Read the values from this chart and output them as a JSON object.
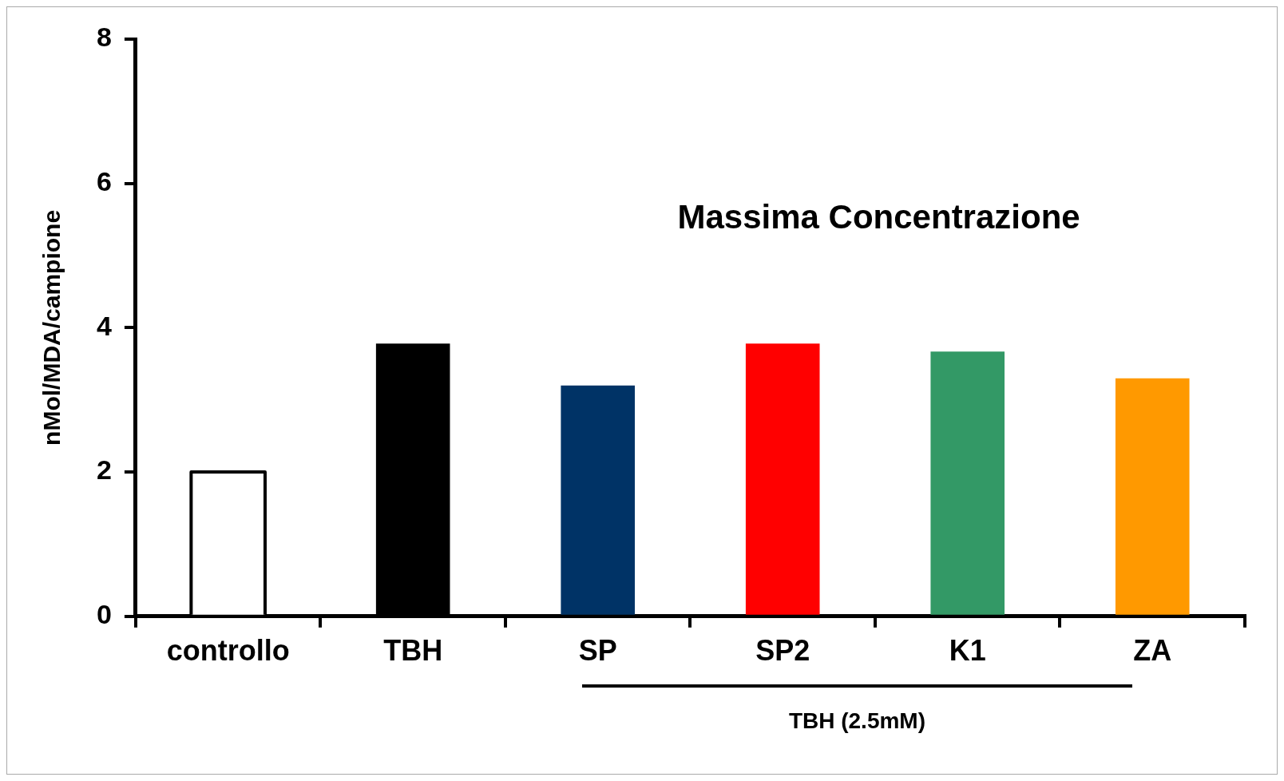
{
  "chart_data": {
    "type": "bar",
    "title": "Massima Concentrazione",
    "ylabel": "nMol/MDA/campione",
    "annotations": [
      "TBH (2.5mM)"
    ],
    "categories": [
      "controllo",
      "TBH",
      "SP",
      "SP2",
      "K1",
      "ZA"
    ],
    "values": [
      2.0,
      3.78,
      3.2,
      3.78,
      3.67,
      3.3
    ],
    "colors": [
      "#ffffff",
      "#000000",
      "#003366",
      "#ff0000",
      "#339966",
      "#ff9900"
    ],
    "ylim": [
      0,
      8
    ],
    "yticks": [
      0,
      2,
      4,
      6,
      8
    ],
    "grid": false,
    "legend": false
  }
}
